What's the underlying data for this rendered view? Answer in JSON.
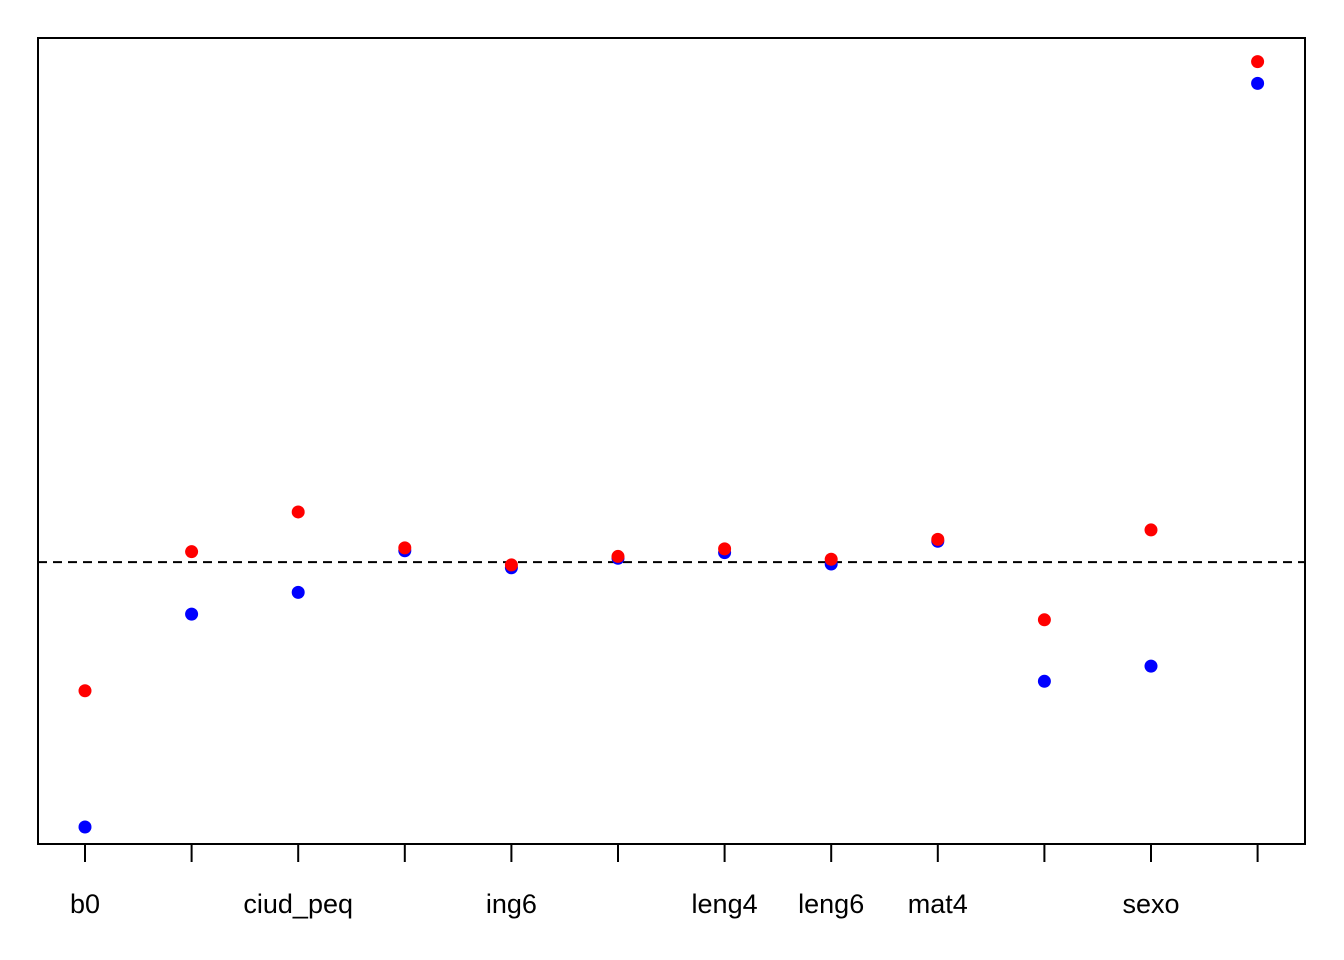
{
  "chart_data": {
    "type": "scatter",
    "title": "",
    "xlabel": "",
    "ylabel": "",
    "categories": [
      "b0",
      "",
      "ciud_peq",
      "",
      "ing6",
      "",
      "leng4",
      "leng6",
      "mat4",
      "",
      "sexo",
      ""
    ],
    "reference_line": {
      "y": 0,
      "style": "dashed",
      "color": "#000000"
    },
    "ylim": [
      -14.9,
      27.7
    ],
    "yaxis_visible": false,
    "grid": false,
    "series": [
      {
        "color": "#0000FF",
        "values": [
          -14.0,
          -2.75,
          -1.6,
          0.6,
          -0.3,
          0.2,
          0.5,
          -0.1,
          1.1,
          -6.3,
          -5.5,
          25.3
        ]
      },
      {
        "color": "#FF0000",
        "values": [
          -6.8,
          0.55,
          2.65,
          0.75,
          -0.15,
          0.3,
          0.7,
          0.15,
          1.2,
          -3.05,
          1.7,
          26.45
        ]
      }
    ]
  }
}
